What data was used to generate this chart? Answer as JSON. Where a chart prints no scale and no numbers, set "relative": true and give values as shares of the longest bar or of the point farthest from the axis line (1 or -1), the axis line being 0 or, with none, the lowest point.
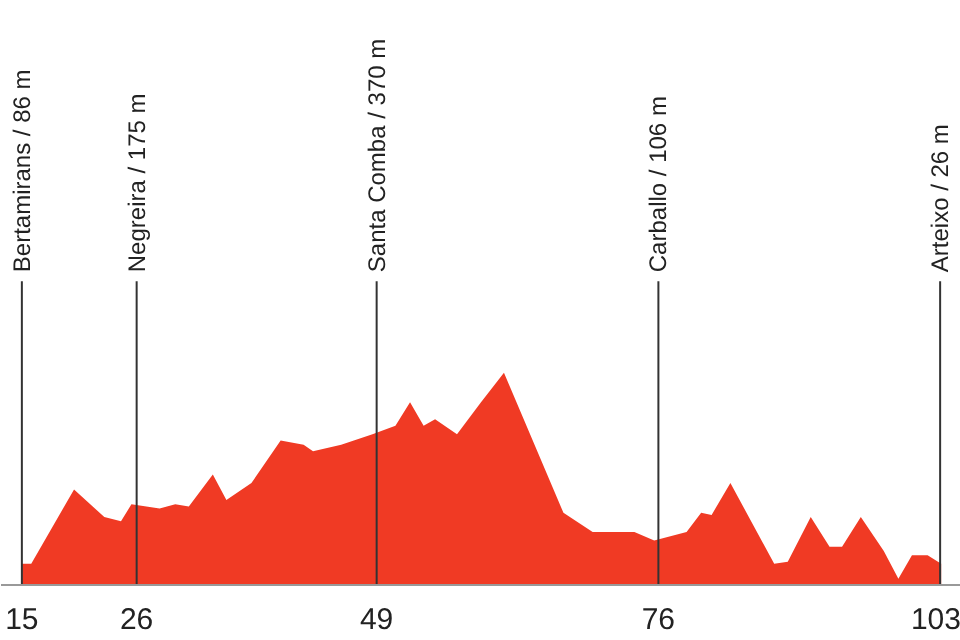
{
  "chart_data": {
    "type": "area",
    "relative": true,
    "xlim": [
      13,
      105
    ],
    "xticks": [
      15,
      26,
      49,
      76,
      103
    ],
    "grid": false,
    "x": [
      15.0,
      15.9,
      20.0,
      22.9,
      24.5,
      25.5,
      28.2,
      29.7,
      31.0,
      33.3,
      34.6,
      37.0,
      39.8,
      42.0,
      42.9,
      45.6,
      48.6,
      50.8,
      52.2,
      53.5,
      54.6,
      56.7,
      59.0,
      61.2,
      66.9,
      69.7,
      73.7,
      75.6,
      78.7,
      80.1,
      81.1,
      82.9,
      87.1,
      88.4,
      90.6,
      92.4,
      93.6,
      95.4,
      97.6,
      99.0,
      100.3,
      101.8,
      103.1
    ],
    "series": [
      {
        "color": "#f03a24",
        "values": [
          0.1,
          0.1,
          0.45,
          0.32,
          0.3,
          0.38,
          0.36,
          0.38,
          0.37,
          0.52,
          0.4,
          0.48,
          0.68,
          0.66,
          0.63,
          0.66,
          0.71,
          0.75,
          0.86,
          0.75,
          0.78,
          0.71,
          0.86,
          1.0,
          0.34,
          0.25,
          0.25,
          0.21,
          0.25,
          0.34,
          0.33,
          0.48,
          0.1,
          0.11,
          0.32,
          0.18,
          0.18,
          0.32,
          0.16,
          0.03,
          0.14,
          0.14,
          0.1
        ]
      }
    ],
    "ref_lines": [
      {
        "axis": "x",
        "value": 15,
        "label": "Bertamirans / 86 m",
        "color": "#333333"
      },
      {
        "axis": "x",
        "value": 26,
        "label": "Negreira / 175 m",
        "color": "#333333"
      },
      {
        "axis": "x",
        "value": 49,
        "label": "Santa Comba / 370 m",
        "color": "#333333"
      },
      {
        "axis": "x",
        "value": 76,
        "label": "Carballo / 106 m",
        "color": "#333333"
      },
      {
        "axis": "x",
        "value": 103,
        "label": "Arteixo / 26 m",
        "color": "#333333"
      }
    ]
  }
}
